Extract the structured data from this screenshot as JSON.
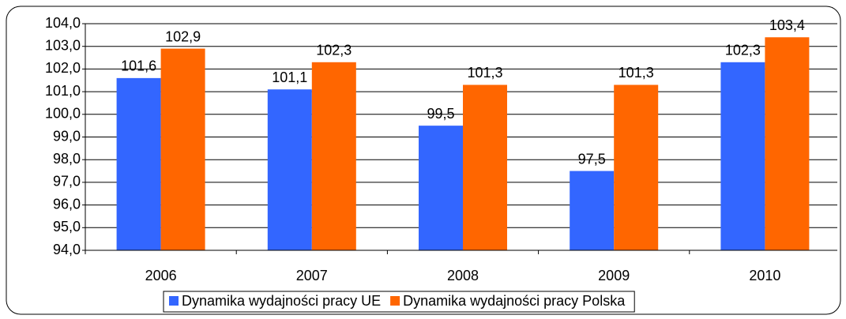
{
  "chart_data": {
    "type": "bar",
    "categories": [
      "2006",
      "2007",
      "2008",
      "2009",
      "2010"
    ],
    "series": [
      {
        "name": "Dynamika wydajności pracy UE",
        "color": "#3366ff",
        "values": [
          101.6,
          101.1,
          99.5,
          97.5,
          102.3
        ],
        "value_labels": [
          "101,6",
          "101,1",
          "99,5",
          "97,5",
          "102,3"
        ]
      },
      {
        "name": "Dynamika wydajności pracy Polska",
        "color": "#ff6600",
        "values": [
          102.9,
          102.3,
          101.3,
          101.3,
          103.4
        ],
        "value_labels": [
          "102,9",
          "102,3",
          "101,3",
          "101,3",
          "103,4"
        ]
      }
    ],
    "ylim": [
      94,
      104
    ],
    "yticks": [
      {
        "value": 94,
        "label": "94,0"
      },
      {
        "value": 95,
        "label": "95,0"
      },
      {
        "value": 96,
        "label": "96,0"
      },
      {
        "value": 97,
        "label": "97,0"
      },
      {
        "value": 98,
        "label": "98,0"
      },
      {
        "value": 99,
        "label": "99,0"
      },
      {
        "value": 100,
        "label": "100,0"
      },
      {
        "value": 101,
        "label": "101,0"
      },
      {
        "value": 102,
        "label": "102,0"
      },
      {
        "value": 103,
        "label": "103,0"
      },
      {
        "value": 104,
        "label": "104,0"
      }
    ],
    "grid": true,
    "legend": "bottom"
  }
}
